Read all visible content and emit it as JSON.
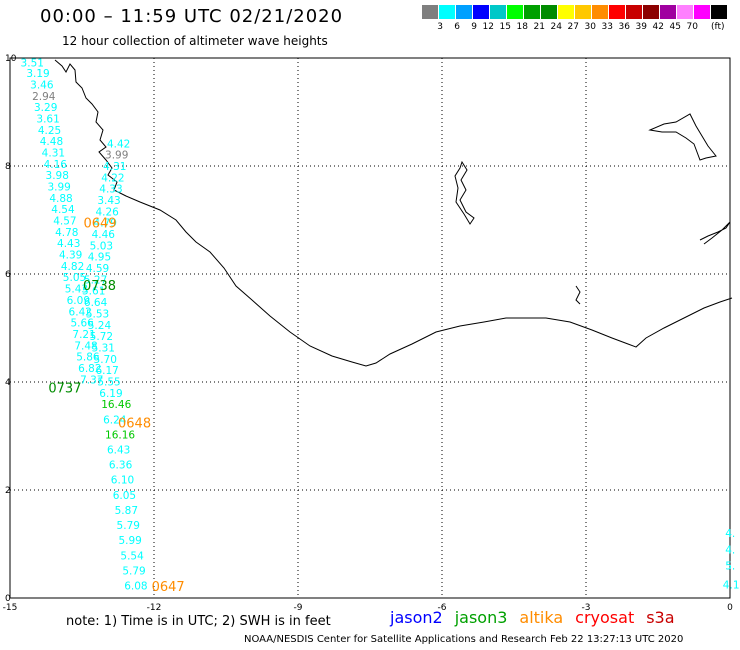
{
  "title": "00:00 – 11:59 UTC 02/21/2020",
  "subtitle": "12 hour collection of altimeter wave heights",
  "legend": {
    "unit": "(ft)",
    "colors": [
      "#7f7f7f",
      "#00ffff",
      "#00a0ff",
      "#0000ff",
      "#00c8c8",
      "#00ff00",
      "#00a000",
      "#008c00",
      "#ffff00",
      "#ffc800",
      "#ff8c00",
      "#ff0000",
      "#c80000",
      "#8c0000",
      "#a000a0",
      "#ff80ff",
      "#ff00ff",
      "#000000"
    ],
    "labels": [
      "3",
      "6",
      "9",
      "12",
      "15",
      "18",
      "21",
      "24",
      "27",
      "30",
      "33",
      "36",
      "39",
      "42",
      "45",
      "70"
    ]
  },
  "axes": {
    "x_ticks": [
      "-15",
      "-12",
      "-9",
      "-6",
      "-3",
      "0"
    ],
    "y_ticks": [
      "0",
      "2",
      "4",
      "6",
      "8",
      "10"
    ]
  },
  "map_data": {
    "type": "altimeter-track-map",
    "lon_range": [
      -15,
      0
    ],
    "lat_range": [
      0,
      10
    ],
    "grid": true,
    "values": [
      {
        "text": "3.51",
        "lon": -14.78,
        "lat": 9.92,
        "color": "#00ffff"
      },
      {
        "text": "3.19",
        "lon": -14.66,
        "lat": 9.72,
        "color": "#00ffff"
      },
      {
        "text": "3.46",
        "lon": -14.58,
        "lat": 9.51,
        "color": "#00ffff"
      },
      {
        "text": "2.94",
        "lon": -14.54,
        "lat": 9.3,
        "color": "#7f7f7f"
      },
      {
        "text": "3.29",
        "lon": -14.5,
        "lat": 9.09,
        "color": "#00ffff"
      },
      {
        "text": "3.61",
        "lon": -14.45,
        "lat": 8.88,
        "color": "#00ffff"
      },
      {
        "text": "4.25",
        "lon": -14.42,
        "lat": 8.67,
        "color": "#00ffff"
      },
      {
        "text": "4.48",
        "lon": -14.38,
        "lat": 8.46,
        "color": "#00ffff"
      },
      {
        "text": "4.31",
        "lon": -14.34,
        "lat": 8.25,
        "color": "#00ffff"
      },
      {
        "text": "4.16",
        "lon": -14.3,
        "lat": 8.04,
        "color": "#00ffff"
      },
      {
        "text": "3.98",
        "lon": -14.26,
        "lat": 7.83,
        "color": "#00ffff"
      },
      {
        "text": "3.99",
        "lon": -14.22,
        "lat": 7.62,
        "color": "#00ffff"
      },
      {
        "text": "4.88",
        "lon": -14.18,
        "lat": 7.41,
        "color": "#00ffff"
      },
      {
        "text": "4.54",
        "lon": -14.14,
        "lat": 7.2,
        "color": "#00ffff"
      },
      {
        "text": "4.57",
        "lon": -14.1,
        "lat": 6.99,
        "color": "#00ffff"
      },
      {
        "text": "4.78",
        "lon": -14.06,
        "lat": 6.78,
        "color": "#00ffff"
      },
      {
        "text": "4.43",
        "lon": -14.02,
        "lat": 6.57,
        "color": "#00ffff"
      },
      {
        "text": "4.39",
        "lon": -13.98,
        "lat": 6.36,
        "color": "#00ffff"
      },
      {
        "text": "4.82",
        "lon": -13.94,
        "lat": 6.15,
        "color": "#00ffff"
      },
      {
        "text": "5.05",
        "lon": -13.9,
        "lat": 5.94,
        "color": "#00ffff"
      },
      {
        "text": "5.43",
        "lon": -13.86,
        "lat": 5.73,
        "color": "#00ffff"
      },
      {
        "text": "6.09",
        "lon": -13.82,
        "lat": 5.52,
        "color": "#00ffff"
      },
      {
        "text": "6.42",
        "lon": -13.78,
        "lat": 5.31,
        "color": "#00ffff"
      },
      {
        "text": "5.66",
        "lon": -13.74,
        "lat": 5.1,
        "color": "#00ffff"
      },
      {
        "text": "7.21",
        "lon": -13.7,
        "lat": 4.89,
        "color": "#00ffff"
      },
      {
        "text": "7.48",
        "lon": -13.66,
        "lat": 4.68,
        "color": "#00ffff"
      },
      {
        "text": "5.86",
        "lon": -13.62,
        "lat": 4.47,
        "color": "#00ffff"
      },
      {
        "text": "6.82",
        "lon": -13.58,
        "lat": 4.26,
        "color": "#00ffff"
      },
      {
        "text": "7.37",
        "lon": -13.54,
        "lat": 4.05,
        "color": "#00ffff"
      },
      {
        "text": "4.42",
        "lon": -12.98,
        "lat": 8.42,
        "color": "#00ffff"
      },
      {
        "text": "3.99",
        "lon": -13.02,
        "lat": 8.21,
        "color": "#7f7f7f"
      },
      {
        "text": "4.31",
        "lon": -13.06,
        "lat": 8.0,
        "color": "#00ffff"
      },
      {
        "text": "4.22",
        "lon": -13.1,
        "lat": 7.79,
        "color": "#00ffff"
      },
      {
        "text": "4.33",
        "lon": -13.14,
        "lat": 7.58,
        "color": "#00ffff"
      },
      {
        "text": "3.43",
        "lon": -13.18,
        "lat": 7.37,
        "color": "#00ffff"
      },
      {
        "text": "4.26",
        "lon": -13.22,
        "lat": 7.16,
        "color": "#00ffff"
      },
      {
        "text": "4.79",
        "lon": -13.26,
        "lat": 6.95,
        "color": "#00ffff"
      },
      {
        "text": "4.46",
        "lon": -13.3,
        "lat": 6.74,
        "color": "#00ffff"
      },
      {
        "text": "5.03",
        "lon": -13.34,
        "lat": 6.53,
        "color": "#00ffff"
      },
      {
        "text": "4.95",
        "lon": -13.38,
        "lat": 6.32,
        "color": "#00ffff"
      },
      {
        "text": "4.59",
        "lon": -13.42,
        "lat": 6.11,
        "color": "#00ffff"
      },
      {
        "text": "5.27",
        "lon": -13.46,
        "lat": 5.9,
        "color": "#00ffff"
      },
      {
        "text": "5.61",
        "lon": -13.5,
        "lat": 5.69,
        "color": "#00ffff"
      },
      {
        "text": "6.64",
        "lon": -13.46,
        "lat": 5.48,
        "color": "#00ffff"
      },
      {
        "text": "5.53",
        "lon": -13.42,
        "lat": 5.27,
        "color": "#00ffff"
      },
      {
        "text": "5.24",
        "lon": -13.38,
        "lat": 5.06,
        "color": "#00ffff"
      },
      {
        "text": "5.72",
        "lon": -13.34,
        "lat": 4.85,
        "color": "#00ffff"
      },
      {
        "text": "5.31",
        "lon": -13.3,
        "lat": 4.64,
        "color": "#00ffff"
      },
      {
        "text": "5.70",
        "lon": -13.26,
        "lat": 4.43,
        "color": "#00ffff"
      },
      {
        "text": "6.17",
        "lon": -13.22,
        "lat": 4.22,
        "color": "#00ffff"
      },
      {
        "text": "5.55",
        "lon": -13.18,
        "lat": 4.01,
        "color": "#00ffff"
      },
      {
        "text": "6.19",
        "lon": -13.14,
        "lat": 3.8,
        "color": "#00ffff"
      },
      {
        "text": "16.46",
        "lon": -13.1,
        "lat": 3.59,
        "color": "#00c800"
      },
      {
        "text": "6.24",
        "lon": -13.06,
        "lat": 3.31,
        "color": "#00ffff"
      },
      {
        "text": "16.16",
        "lon": -13.02,
        "lat": 3.03,
        "color": "#00c800"
      },
      {
        "text": "6.43",
        "lon": -12.98,
        "lat": 2.75,
        "color": "#00ffff"
      },
      {
        "text": "6.36",
        "lon": -12.94,
        "lat": 2.47,
        "color": "#00ffff"
      },
      {
        "text": "6.10",
        "lon": -12.9,
        "lat": 2.19,
        "color": "#00ffff"
      },
      {
        "text": "6.05",
        "lon": -12.86,
        "lat": 1.91,
        "color": "#00ffff"
      },
      {
        "text": "5.87",
        "lon": -12.82,
        "lat": 1.63,
        "color": "#00ffff"
      },
      {
        "text": "5.79",
        "lon": -12.78,
        "lat": 1.35,
        "color": "#00ffff"
      },
      {
        "text": "5.99",
        "lon": -12.74,
        "lat": 1.07,
        "color": "#00ffff"
      },
      {
        "text": "5.54",
        "lon": -12.7,
        "lat": 0.79,
        "color": "#00ffff"
      },
      {
        "text": "5.79",
        "lon": -12.66,
        "lat": 0.51,
        "color": "#00ffff"
      },
      {
        "text": "6.08",
        "lon": -12.62,
        "lat": 0.23,
        "color": "#00ffff"
      },
      {
        "text": "4.",
        "lon": -0.1,
        "lat": 1.2,
        "color": "#00ffff"
      },
      {
        "text": "4.",
        "lon": -0.1,
        "lat": 0.9,
        "color": "#00ffff"
      },
      {
        "text": "5.",
        "lon": -0.1,
        "lat": 0.6,
        "color": "#00ffff"
      },
      {
        "text": "4.1",
        "lon": -0.15,
        "lat": 0.25,
        "color": "#00ffff"
      }
    ],
    "pass_times": [
      {
        "text": "0649",
        "lon": -13.47,
        "lat": 6.95,
        "color": "#ff8c00"
      },
      {
        "text": "0738",
        "lon": -13.48,
        "lat": 5.8,
        "color": "#008c00"
      },
      {
        "text": "0737",
        "lon": -14.2,
        "lat": 3.9,
        "color": "#008c00"
      },
      {
        "text": "0648",
        "lon": -12.75,
        "lat": 3.25,
        "color": "#ff8c00"
      },
      {
        "text": "0647",
        "lon": -12.05,
        "lat": 0.22,
        "color": "#ff8c00"
      }
    ]
  },
  "note": "note: 1) Time is in UTC; 2) SWH is in feet",
  "satellites": [
    {
      "name": "jason2",
      "color": "#0000ff"
    },
    {
      "name": "jason3",
      "color": "#00a000"
    },
    {
      "name": "altika",
      "color": "#ff8c00"
    },
    {
      "name": "cryosat",
      "color": "#ff0000"
    },
    {
      "name": "s3a",
      "color": "#c80000"
    }
  ],
  "credit": "NOAA/NESDIS Center for Satellite Applications and Research    Feb 22 13:27:13 UTC 2020"
}
